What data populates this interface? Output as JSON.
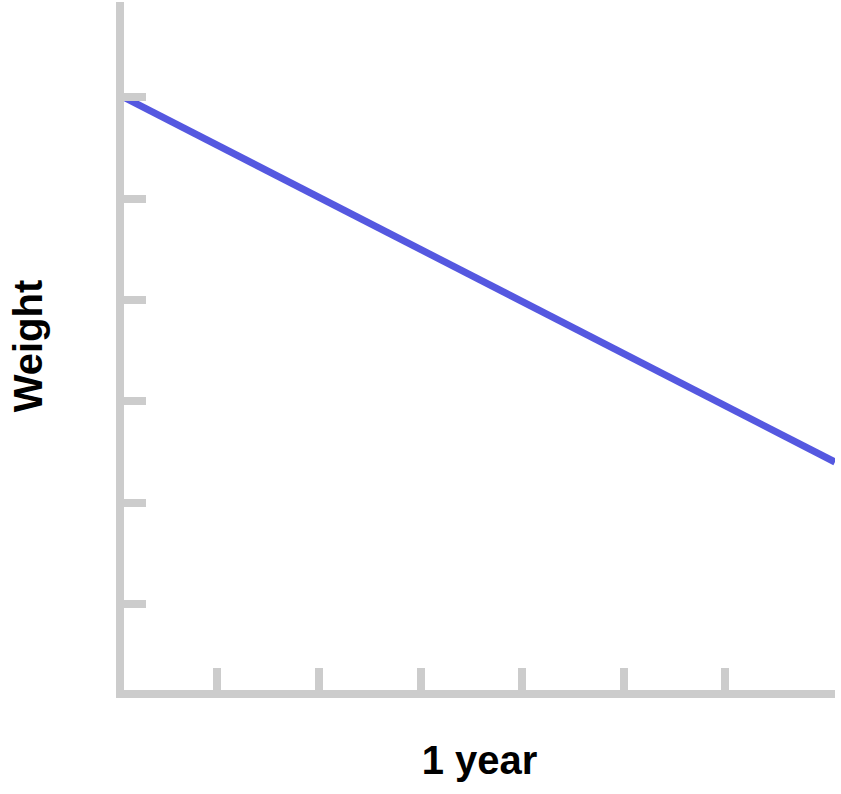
{
  "chart_data": {
    "type": "line",
    "x_label": "1 year",
    "y_label": "Weight",
    "x": [
      0.08,
      7.08
    ],
    "values": [
      6,
      2.4
    ],
    "color": "#5558e0",
    "xlim": [
      0.08,
      7.08
    ],
    "ylim": [
      0.15,
      6.94
    ],
    "xticks": [
      1,
      2,
      3,
      4,
      5,
      6
    ],
    "yticks": [
      1,
      2,
      3,
      4,
      5,
      6
    ],
    "grid": false,
    "tick_labels": false
  }
}
